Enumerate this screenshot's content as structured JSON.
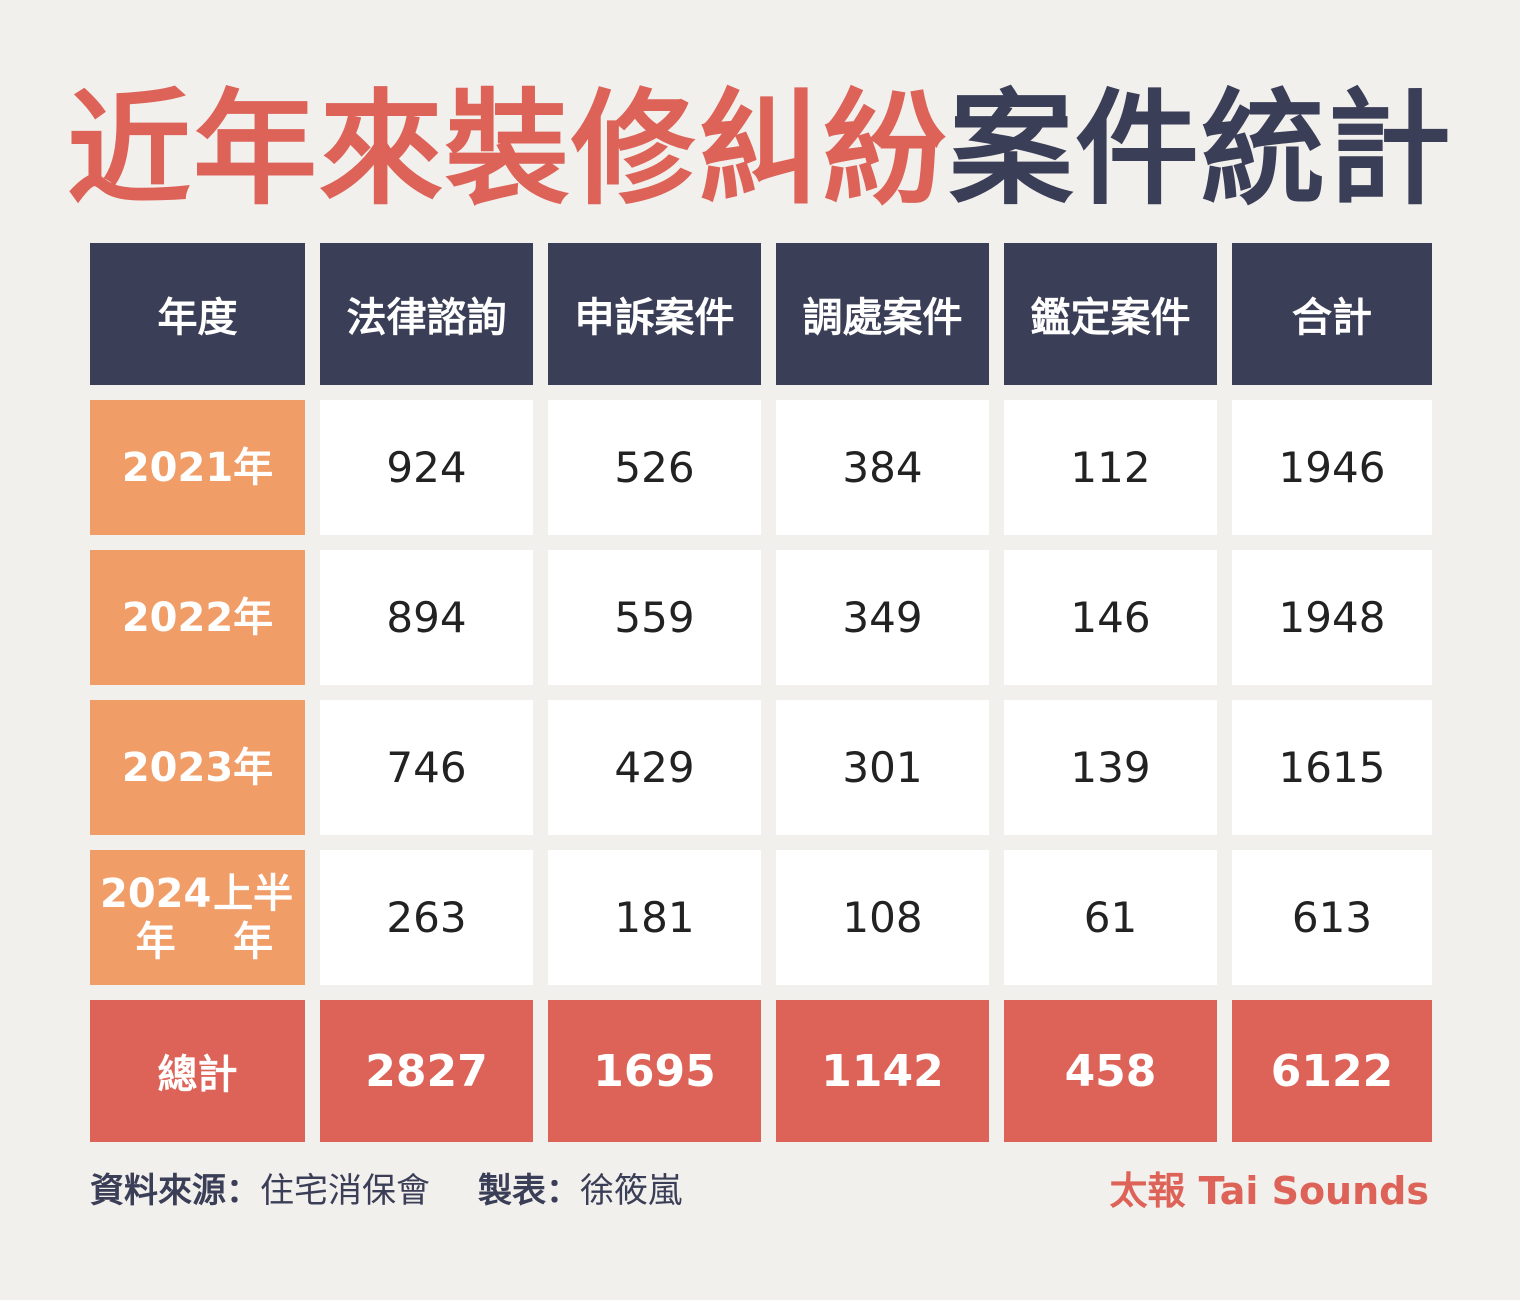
{
  "title": {
    "highlight": "近年來裝修糾紛",
    "rest": "案件統計"
  },
  "colors": {
    "background": "#f2f0ed",
    "header": "#3b3e57",
    "year_cell": "#f09d68",
    "total_row": "#dd6359",
    "title_highlight": "#dd6359",
    "title_dark": "#3b3e57"
  },
  "chart_data": {
    "type": "table",
    "columns": [
      "年度",
      "法律諮詢",
      "申訴案件",
      "調處案件",
      "鑑定案件",
      "合計"
    ],
    "rows": [
      {
        "year": "2021年",
        "values": [
          "924",
          "526",
          "384",
          "112",
          "1946"
        ]
      },
      {
        "year": "2022年",
        "values": [
          "894",
          "559",
          "349",
          "146",
          "1948"
        ]
      },
      {
        "year": "2023年",
        "values": [
          "746",
          "429",
          "301",
          "139",
          "1615"
        ]
      },
      {
        "year": "2024年上半年",
        "year_lines": [
          "2024年",
          "上半年"
        ],
        "values": [
          "263",
          "181",
          "108",
          "61",
          "613"
        ]
      }
    ],
    "total": {
      "label": "總計",
      "values": [
        "2827",
        "1695",
        "1142",
        "458",
        "6122"
      ]
    }
  },
  "footer": {
    "source_label": "資料來源：",
    "source_value": "住宅消保會",
    "maker_label": "製表：",
    "maker_value": "徐筱嵐",
    "brand": "太報 Tai Sounds"
  }
}
